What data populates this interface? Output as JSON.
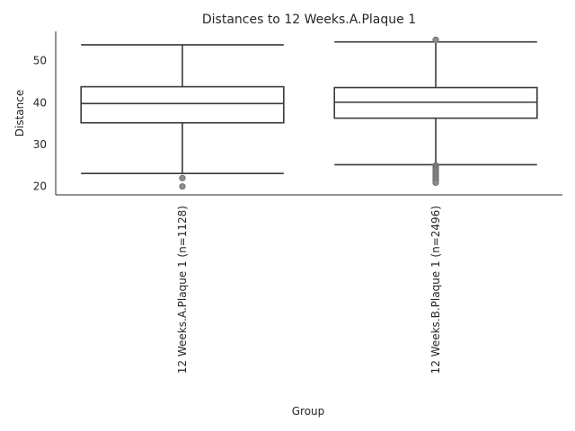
{
  "chart_data": {
    "type": "box",
    "title": "Distances to 12 Weeks.A.Plaque 1",
    "xlabel": "Group",
    "ylabel": "Distance",
    "ylim": [
      18,
      57
    ],
    "yticks": [
      20,
      30,
      40,
      50
    ],
    "categories": [
      "12 Weeks.A.Plaque 1 (n=1128)",
      "12 Weeks.B.Plaque 1 (n=2496)"
    ],
    "boxes": [
      {
        "name": "12 Weeks.A.Plaque 1 (n=1128)",
        "whisker_low": 23.1,
        "q1": 35.2,
        "median": 39.8,
        "q3": 43.8,
        "whisker_high": 53.8,
        "fliers": [
          22.0,
          20.0
        ]
      },
      {
        "name": "12 Weeks.B.Plaque 1 (n=2496)",
        "whisker_low": 25.2,
        "q1": 36.3,
        "median": 40.1,
        "q3": 43.6,
        "whisker_high": 54.5,
        "fliers": [
          55.0,
          25.0,
          24.7,
          24.4,
          24.1,
          23.8,
          23.4,
          23.0,
          22.6,
          22.2,
          21.8,
          21.3,
          20.9
        ]
      }
    ],
    "spines": "left-bottom",
    "grid": false
  }
}
